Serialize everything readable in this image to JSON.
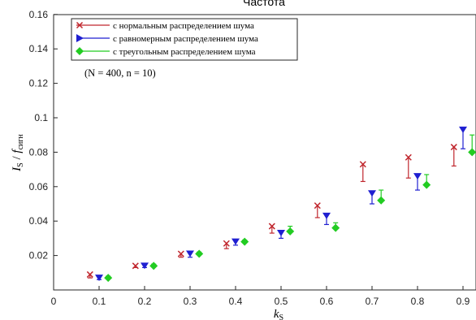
{
  "chart_data": {
    "type": "scatter",
    "title": "Частота",
    "annotation": "(N = 400,  n = 10)",
    "xlabel": {
      "main": "k",
      "sub": "S"
    },
    "ylabel": {
      "main_i": "I",
      "sub_s": "S",
      "slash": " / ",
      "f": "f",
      "sub_f": "сигн"
    },
    "xlim": [
      0,
      0.95
    ],
    "ylim": [
      0,
      0.16
    ],
    "xticks": [
      "0",
      "0.1",
      "0.2",
      "0.3",
      "0.4",
      "0.5",
      "0.6",
      "0.7",
      "0.8",
      "0.9"
    ],
    "yticks": [
      "0.02",
      "0.04",
      "0.06",
      "0.08",
      "0.1",
      "0.12",
      "0.14",
      "0.16"
    ],
    "grid": false,
    "legend_position": "top-left",
    "series": [
      {
        "name": "с нормальным распределением шума",
        "color": "#c0262d",
        "marker": "x",
        "x": [
          0.08,
          0.18,
          0.28,
          0.38,
          0.48,
          0.58,
          0.68,
          0.78,
          0.88
        ],
        "y": [
          0.009,
          0.014,
          0.021,
          0.027,
          0.037,
          0.049,
          0.073,
          0.077,
          0.083
        ],
        "low": [
          0.007,
          0.013,
          0.019,
          0.024,
          0.033,
          0.042,
          0.063,
          0.065,
          0.072
        ]
      },
      {
        "name": "с равномерным распределением шума",
        "color": "#1f1fd1",
        "marker": "triangle-down",
        "x": [
          0.1,
          0.2,
          0.3,
          0.4,
          0.5,
          0.6,
          0.7,
          0.8,
          0.9
        ],
        "y": [
          0.007,
          0.014,
          0.021,
          0.028,
          0.033,
          0.043,
          0.056,
          0.066,
          0.093
        ],
        "low": [
          0.006,
          0.013,
          0.019,
          0.026,
          0.03,
          0.038,
          0.05,
          0.058,
          0.082
        ]
      },
      {
        "name": "с треугольным распределением шума",
        "color": "#22cc22",
        "marker": "diamond",
        "x": [
          0.12,
          0.22,
          0.32,
          0.42,
          0.52,
          0.62,
          0.72,
          0.82,
          0.92
        ],
        "y": [
          0.007,
          0.014,
          0.021,
          0.028,
          0.034,
          0.036,
          0.052,
          0.061,
          0.08
        ],
        "high": [
          0.008,
          0.015,
          0.022,
          0.029,
          0.037,
          0.039,
          0.058,
          0.067,
          0.09
        ]
      }
    ]
  }
}
